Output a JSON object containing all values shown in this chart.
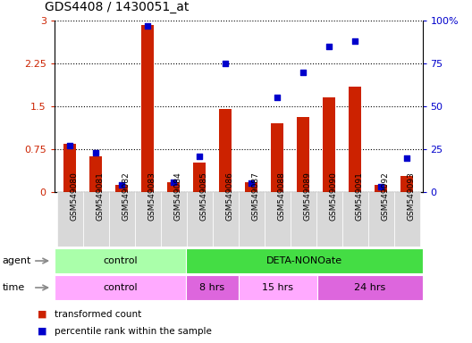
{
  "title": "GDS4408 / 1430051_at",
  "samples": [
    "GSM549080",
    "GSM549081",
    "GSM549082",
    "GSM549083",
    "GSM549084",
    "GSM549085",
    "GSM549086",
    "GSM549087",
    "GSM549088",
    "GSM549089",
    "GSM549090",
    "GSM549091",
    "GSM549092",
    "GSM549093"
  ],
  "red_values": [
    0.85,
    0.62,
    0.12,
    2.93,
    0.18,
    0.52,
    1.46,
    0.18,
    1.2,
    1.32,
    1.65,
    1.85,
    0.13,
    0.28
  ],
  "blue_values": [
    27,
    23,
    4,
    97,
    6,
    21,
    75,
    5,
    55,
    70,
    85,
    88,
    3,
    20
  ],
  "ylim_left": [
    0,
    3
  ],
  "ylim_right": [
    0,
    100
  ],
  "yticks_left": [
    0,
    0.75,
    1.5,
    2.25,
    3
  ],
  "yticks_right": [
    0,
    25,
    50,
    75,
    100
  ],
  "ytick_labels_left": [
    "0",
    "0.75",
    "1.5",
    "2.25",
    "3"
  ],
  "ytick_labels_right": [
    "0",
    "25",
    "50",
    "75",
    "100%"
  ],
  "red_color": "#cc2200",
  "blue_color": "#0000cc",
  "agent_regions": [
    {
      "start": 0,
      "end": 5,
      "label": "control",
      "color": "#aaffaa"
    },
    {
      "start": 5,
      "end": 14,
      "label": "DETA-NONOate",
      "color": "#44dd44"
    }
  ],
  "time_regions": [
    {
      "start": 0,
      "end": 5,
      "label": "control",
      "color": "#ffaaff"
    },
    {
      "start": 5,
      "end": 7,
      "label": "8 hrs",
      "color": "#dd66dd"
    },
    {
      "start": 7,
      "end": 10,
      "label": "15 hrs",
      "color": "#ffaaff"
    },
    {
      "start": 10,
      "end": 14,
      "label": "24 hrs",
      "color": "#dd66dd"
    }
  ],
  "legend_red": "transformed count",
  "legend_blue": "percentile rank within the sample",
  "tick_bg_color": "#d8d8d8",
  "bar_width": 0.5
}
